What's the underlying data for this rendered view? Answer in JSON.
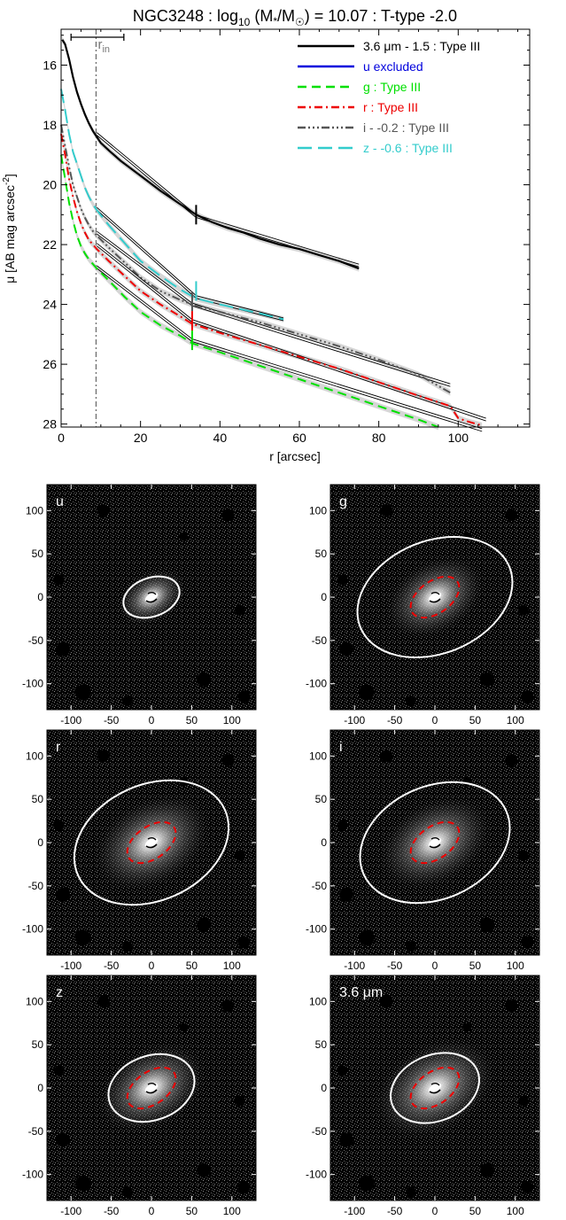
{
  "chart_data": [
    {
      "type": "line",
      "title_parts": {
        "prefix": "NGC3248 : log",
        "sub10": "10",
        "mid": " (M",
        "star": "*",
        "slash": "/M",
        "sun": "☉",
        "suffix": ") = 10.07 : T-type -2.0"
      },
      "xlabel": "r [arcsec]",
      "ylabel_parts": {
        "prefix": "μ [AB mag arcsec",
        "sup": "-2",
        "suffix": "]"
      },
      "xlim": [
        0,
        118
      ],
      "ylim": [
        28.1,
        14.8
      ],
      "xticks": [
        0,
        20,
        40,
        60,
        80,
        100
      ],
      "yticks": [
        16,
        18,
        20,
        22,
        24,
        26,
        28
      ],
      "r_in": {
        "label": "r",
        "sub": "in",
        "x": 8.8
      },
      "r_in_errorbar": [
        2.5,
        15.8
      ],
      "legend": [
        {
          "label": "3.6 μm - 1.5 : Type III",
          "color": "#000000",
          "dash": ""
        },
        {
          "label": "u excluded",
          "color": "#0000dd",
          "dash": ""
        },
        {
          "label": "g : Type III",
          "color": "#00e000",
          "dash": "10,6"
        },
        {
          "label": "r : Type III",
          "color": "#ee0000",
          "dash": "9,4,2,4"
        },
        {
          "label": "i - -0.2 : Type III",
          "color": "#555555",
          "dash": "9,3,2,3,2,3,2,3"
        },
        {
          "label": "z - -0.6 : Type III",
          "color": "#33cccc",
          "dash": "16,7"
        }
      ],
      "series": [
        {
          "name": "3.6 μm - 1.5 : Type III",
          "color": "#000000",
          "width": 2.2,
          "x": [
            0.3,
            1,
            2,
            3,
            4,
            5,
            6,
            7,
            8,
            9,
            10,
            12,
            15,
            20,
            25,
            30,
            34,
            38,
            42,
            46,
            50,
            55,
            60,
            65,
            70,
            75
          ],
          "y": [
            15.15,
            15.3,
            15.8,
            16.4,
            16.9,
            17.3,
            17.65,
            17.95,
            18.2,
            18.4,
            18.6,
            18.85,
            19.2,
            19.7,
            20.2,
            20.65,
            21.0,
            21.25,
            21.45,
            21.6,
            21.8,
            22.0,
            22.15,
            22.35,
            22.55,
            22.8
          ],
          "fits": [
            {
              "x": [
                9,
                34
              ],
              "y": [
                18.3,
                21.05
              ]
            },
            {
              "x": [
                34,
                75
              ],
              "y": [
                21.05,
                22.7
              ]
            }
          ],
          "break": {
            "x": 34,
            "y": 21.0
          }
        },
        {
          "name": "z - -0.6 : Type III",
          "color": "#33cccc",
          "width": 2,
          "dash": "16,7",
          "x": [
            0,
            1,
            2,
            3,
            4,
            5,
            6,
            7,
            8,
            9,
            12,
            16,
            20,
            25,
            30,
            34,
            40,
            45,
            50,
            56
          ],
          "y": [
            16.8,
            17.5,
            18.3,
            18.9,
            19.3,
            19.7,
            20.1,
            20.4,
            20.65,
            20.85,
            21.35,
            21.95,
            22.55,
            23.05,
            23.5,
            23.8,
            24.0,
            24.15,
            24.3,
            24.5
          ],
          "fits": [
            {
              "x": [
                9,
                34
              ],
              "y": [
                20.8,
                23.75
              ]
            },
            {
              "x": [
                34,
                56
              ],
              "y": [
                23.75,
                24.5
              ]
            }
          ],
          "break": {
            "x": 34,
            "y": 23.55
          }
        },
        {
          "name": "i - -0.2 : Type III",
          "color": "#555555",
          "width": 2,
          "dash": "9,3,2,3,2,3,2,3",
          "x": [
            0,
            1,
            2,
            3,
            4,
            5,
            6,
            7,
            8,
            9,
            12,
            16,
            20,
            25,
            30,
            33,
            40,
            50,
            60,
            70,
            80,
            90,
            98
          ],
          "y": [
            18.0,
            18.7,
            19.4,
            20.0,
            20.4,
            20.8,
            21.1,
            21.35,
            21.55,
            21.7,
            22.1,
            22.6,
            23.1,
            23.55,
            23.85,
            24.0,
            24.25,
            24.6,
            25.0,
            25.4,
            25.85,
            26.35,
            26.95
          ],
          "fits": [
            {
              "x": [
                9,
                33
              ],
              "y": [
                21.6,
                24.0
              ]
            },
            {
              "x": [
                33,
                98
              ],
              "y": [
                24.0,
                26.7
              ]
            }
          ],
          "break": {
            "x": 33,
            "y": 23.9
          }
        },
        {
          "name": "r : Type III",
          "color": "#ee0000",
          "width": 2,
          "dash": "9,4,2,4",
          "x": [
            0,
            1,
            2,
            3,
            4,
            5,
            6,
            7,
            8,
            9,
            12,
            16,
            20,
            25,
            30,
            33,
            40,
            50,
            60,
            70,
            80,
            90,
            98,
            100,
            102,
            106
          ],
          "y": [
            18.3,
            19.0,
            19.8,
            20.4,
            20.9,
            21.3,
            21.6,
            21.85,
            22.0,
            22.15,
            22.55,
            23.05,
            23.55,
            24.0,
            24.4,
            24.65,
            24.95,
            25.35,
            25.75,
            26.15,
            26.6,
            27.05,
            27.4,
            27.8,
            27.9,
            28.05
          ],
          "fits": [
            {
              "x": [
                9,
                33
              ],
              "y": [
                22.0,
                24.55
              ]
            },
            {
              "x": [
                33,
                107
              ],
              "y": [
                24.55,
                27.85
              ]
            }
          ],
          "break": {
            "x": 33,
            "y": 24.55
          }
        },
        {
          "name": "g : Type III",
          "color": "#00e000",
          "width": 2,
          "dash": "10,6",
          "x": [
            0,
            1,
            2,
            3,
            4,
            5,
            6,
            7,
            8,
            9,
            12,
            16,
            20,
            25,
            30,
            33,
            40,
            50,
            60,
            70,
            80,
            90,
            95
          ],
          "y": [
            19.0,
            19.8,
            20.6,
            21.2,
            21.7,
            22.05,
            22.3,
            22.5,
            22.65,
            22.8,
            23.2,
            23.75,
            24.25,
            24.7,
            25.05,
            25.3,
            25.6,
            26.05,
            26.5,
            26.95,
            27.4,
            27.85,
            28.1
          ],
          "fits": [
            {
              "x": [
                9,
                33
              ],
              "y": [
                22.75,
                25.2
              ]
            },
            {
              "x": [
                33,
                106
              ],
              "y": [
                25.2,
                28.2
              ]
            }
          ],
          "break": {
            "x": 33,
            "y": 25.2
          }
        }
      ]
    },
    {
      "type": "image-grid",
      "xlim": [
        -130,
        130
      ],
      "ylim": [
        -130,
        130
      ],
      "ticks": [
        -100,
        -50,
        0,
        50,
        100
      ],
      "tick_labels": [
        "-100",
        "-50",
        "0",
        "50",
        "100"
      ],
      "panels": [
        {
          "label": "u",
          "outer_ellipse": {
            "a": 36,
            "b": 24,
            "angle_deg": 20
          },
          "inner_ellipse": null,
          "glow": 0.25
        },
        {
          "label": "g",
          "outer_ellipse": {
            "a": 100,
            "b": 70,
            "angle_deg": 22
          },
          "inner_ellipse": {
            "a": 34,
            "b": 20,
            "angle_deg": 35
          },
          "glow": 0.6
        },
        {
          "label": "r",
          "outer_ellipse": {
            "a": 100,
            "b": 72,
            "angle_deg": 24
          },
          "inner_ellipse": {
            "a": 34,
            "b": 20,
            "angle_deg": 35
          },
          "glow": 0.8
        },
        {
          "label": "i",
          "outer_ellipse": {
            "a": 97,
            "b": 70,
            "angle_deg": 24
          },
          "inner_ellipse": {
            "a": 34,
            "b": 20,
            "angle_deg": 35
          },
          "glow": 0.75
        },
        {
          "label": "z",
          "outer_ellipse": {
            "a": 55,
            "b": 40,
            "angle_deg": 20
          },
          "inner_ellipse": {
            "a": 34,
            "b": 20,
            "angle_deg": 35
          },
          "glow": 0.7
        },
        {
          "label_prefix": "3.6 ",
          "label_mu": "μ",
          "label_suffix": "m",
          "outer_ellipse": {
            "a": 57,
            "b": 41,
            "angle_deg": 22
          },
          "inner_ellipse": {
            "a": 34,
            "b": 20,
            "angle_deg": 35
          },
          "glow": 0.85
        }
      ]
    }
  ]
}
